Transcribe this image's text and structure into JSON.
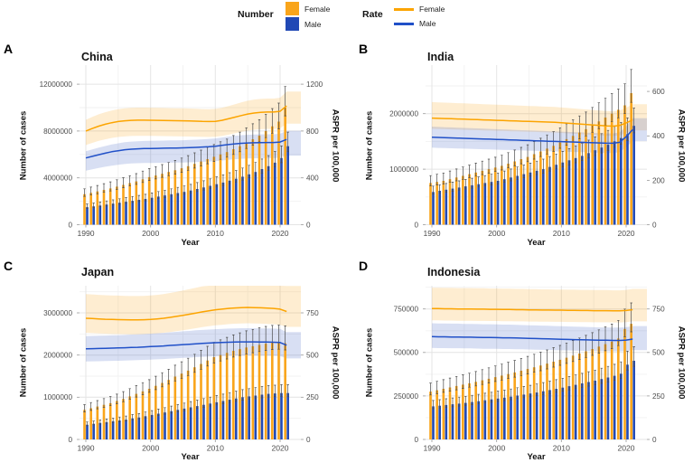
{
  "colors": {
    "female": "#F9A51B",
    "male": "#2149B5",
    "female_line": "#FCA400",
    "male_line": "#2050C8",
    "female_band": "rgba(249,164,26,0.20)",
    "male_band": "rgba(59,96,196,0.20)",
    "error_bar": "#4a4a4a",
    "grid_major": "#E4E4E4",
    "grid_minor": "#F2F2F2",
    "axis_text": "#4d4d4d",
    "tick_mark": "#9a9a9a"
  },
  "legend": {
    "position": "top",
    "number_label": "Number",
    "rate_label": "Rate",
    "number_items": [
      {
        "label": "Female",
        "color": "#F9A51B"
      },
      {
        "label": "Male",
        "color": "#2149B5"
      }
    ],
    "rate_items": [
      {
        "label": "Female",
        "color": "#FCA400"
      },
      {
        "label": "Male",
        "color": "#2050C8"
      }
    ]
  },
  "chart_data": [
    {
      "type": "bar+line",
      "letter": "A",
      "title": "China",
      "xlabel": "Year",
      "ylabel_left": "Number of cases",
      "ylabel_right": "ASPR per 100,000",
      "legend_position": "top",
      "grid": true,
      "years": [
        1990,
        1991,
        1992,
        1993,
        1994,
        1995,
        1996,
        1997,
        1998,
        1999,
        2000,
        2001,
        2002,
        2003,
        2004,
        2005,
        2006,
        2007,
        2008,
        2009,
        2010,
        2011,
        2012,
        2013,
        2014,
        2015,
        2016,
        2017,
        2018,
        2019,
        2020,
        2021
      ],
      "x_ticks": [
        1990,
        2000,
        2010,
        2020
      ],
      "left_ticks": [
        0,
        4000000,
        8000000,
        12000000
      ],
      "right_ticks": [
        0,
        400,
        800,
        1200
      ],
      "right_axis_transform": 10000,
      "bars": {
        "female": [
          2600000,
          2720000,
          2840000,
          2970000,
          3100000,
          3250000,
          3400000,
          3550000,
          3700000,
          3880000,
          4060000,
          4200000,
          4350000,
          4500000,
          4650000,
          4820000,
          5000000,
          5200000,
          5400000,
          5600000,
          5800000,
          6000000,
          6200000,
          6450000,
          6700000,
          7000000,
          7300000,
          7600000,
          8000000,
          8400000,
          8800000,
          10000000
        ],
        "male": [
          1500000,
          1570000,
          1640000,
          1720000,
          1800000,
          1880000,
          1960000,
          2040000,
          2120000,
          2200000,
          2300000,
          2400000,
          2500000,
          2600000,
          2700000,
          2800000,
          2920000,
          3050000,
          3180000,
          3320000,
          3460000,
          3600000,
          3760000,
          3920000,
          4100000,
          4300000,
          4500000,
          4750000,
          5000000,
          5300000,
          5700000,
          6700000
        ]
      },
      "rates": {
        "female": [
          800,
          822,
          842,
          858,
          871,
          881,
          887,
          891,
          893,
          893,
          892,
          891,
          890,
          889,
          888,
          887,
          886,
          884,
          882,
          881,
          883,
          891,
          904,
          918,
          932,
          945,
          954,
          959,
          962,
          962,
          968,
          1015
        ],
        "male": [
          570,
          584,
          598,
          611,
          623,
          632,
          640,
          645,
          648,
          650,
          651,
          652,
          653,
          654,
          655,
          656,
          658,
          660,
          663,
          666,
          670,
          677,
          684,
          690,
          695,
          698,
          700,
          701,
          702,
          702,
          706,
          728
        ]
      },
      "bands": {
        "female": {
          "lower": 0.85,
          "upper": 1.12
        },
        "male": {
          "lower": 0.81,
          "upper": 1.1
        }
      },
      "error_bars": {
        "lower": 0.93,
        "upper": 1.18
      }
    },
    {
      "type": "bar+line",
      "letter": "B",
      "title": "India",
      "xlabel": "Year",
      "ylabel_left": "Number of cases",
      "ylabel_right": "ASPR per 100,000",
      "legend_position": "top",
      "grid": true,
      "years": [
        1990,
        1991,
        1992,
        1993,
        1994,
        1995,
        1996,
        1997,
        1998,
        1999,
        2000,
        2001,
        2002,
        2003,
        2004,
        2005,
        2006,
        2007,
        2008,
        2009,
        2010,
        2011,
        2012,
        2013,
        2014,
        2015,
        2016,
        2017,
        2018,
        2019,
        2020,
        2021
      ],
      "x_ticks": [
        1990,
        2000,
        2010,
        2020
      ],
      "left_ticks": [
        0,
        1000000,
        2000000
      ],
      "right_ticks": [
        0,
        200,
        400,
        600
      ],
      "right_axis_transform": 4000,
      "bars": {
        "female": [
          750000,
          770000,
          790000,
          820000,
          850000,
          880000,
          910000,
          940000,
          970000,
          1000000,
          1030000,
          1060000,
          1100000,
          1140000,
          1180000,
          1220000,
          1270000,
          1320000,
          1370000,
          1420000,
          1480000,
          1540000,
          1600000,
          1660000,
          1720000,
          1790000,
          1860000,
          1930000,
          2000000,
          2070000,
          2150000,
          2370000
        ],
        "male": [
          590000,
          610000,
          630000,
          650000,
          670000,
          690000,
          710000,
          730000,
          750000,
          770000,
          790000,
          820000,
          850000,
          880000,
          910000,
          940000,
          970000,
          1000000,
          1040000,
          1080000,
          1120000,
          1160000,
          1200000,
          1240000,
          1290000,
          1340000,
          1390000,
          1440000,
          1500000,
          1560000,
          1630000,
          1780000
        ]
      },
      "rates": {
        "female": [
          480,
          479,
          478,
          477,
          476,
          475,
          474,
          473,
          472,
          471,
          470,
          469,
          468,
          467,
          466,
          465,
          464,
          463,
          462,
          461,
          459,
          457,
          455,
          453,
          451,
          449,
          447,
          445,
          444,
          447,
          458,
          472
        ],
        "male": [
          394,
          393,
          392,
          391,
          390,
          389,
          388,
          387,
          386,
          385,
          384,
          383,
          382,
          381,
          380,
          379,
          378,
          377,
          376,
          375,
          374,
          373,
          372,
          371,
          370,
          369,
          368,
          367,
          367,
          371,
          396,
          428
        ]
      },
      "bands": {
        "female": {
          "lower": 0.9,
          "upper": 1.15
        },
        "male": {
          "lower": 0.88,
          "upper": 1.12
        }
      },
      "error_bars": {
        "lower": 0.93,
        "upper": 1.18
      }
    },
    {
      "type": "bar+line",
      "letter": "C",
      "title": "Japan",
      "xlabel": "Year",
      "ylabel_left": "Number of cases",
      "ylabel_right": "ASPR per 100,000",
      "legend_position": "top",
      "grid": true,
      "years": [
        1990,
        1991,
        1992,
        1993,
        1994,
        1995,
        1996,
        1997,
        1998,
        1999,
        2000,
        2001,
        2002,
        2003,
        2004,
        2005,
        2006,
        2007,
        2008,
        2009,
        2010,
        2011,
        2012,
        2013,
        2014,
        2015,
        2016,
        2017,
        2018,
        2019,
        2020,
        2021
      ],
      "x_ticks": [
        1990,
        2000,
        2010,
        2020
      ],
      "left_ticks": [
        0,
        1000000,
        2000000,
        3000000
      ],
      "right_ticks": [
        0,
        250,
        500,
        750
      ],
      "right_axis_transform": 4000,
      "bars": {
        "female": [
          700000,
          740000,
          780000,
          820000,
          860000,
          910000,
          960000,
          1020000,
          1080000,
          1140000,
          1200000,
          1270000,
          1340000,
          1410000,
          1490000,
          1560000,
          1630000,
          1710000,
          1790000,
          1870000,
          1950000,
          2000000,
          2050000,
          2100000,
          2140000,
          2180000,
          2210000,
          2240000,
          2270000,
          2290000,
          2300000,
          2280000
        ],
        "male": [
          350000,
          370000,
          390000,
          410000,
          430000,
          450000,
          470000,
          500000,
          520000,
          550000,
          580000,
          610000,
          640000,
          670000,
          700000,
          730000,
          760000,
          790000,
          820000,
          850000,
          880000,
          910000,
          940000,
          970000,
          1000000,
          1020000,
          1040000,
          1060000,
          1080000,
          1090000,
          1100000,
          1100000
        ]
      },
      "rates": {
        "female": [
          718,
          716,
          714,
          712,
          711,
          710,
          709,
          708,
          708,
          709,
          711,
          714,
          718,
          723,
          729,
          735,
          742,
          749,
          756,
          762,
          768,
          772,
          776,
          779,
          781,
          782,
          781,
          780,
          778,
          776,
          772,
          758
        ],
        "male": [
          537,
          538,
          539,
          540,
          541,
          542,
          543,
          545,
          546,
          548,
          550,
          552,
          554,
          557,
          559,
          562,
          564,
          567,
          569,
          571,
          573,
          574,
          576,
          577,
          578,
          578,
          578,
          577,
          577,
          576,
          574,
          558
        ]
      },
      "bands": {
        "female": {
          "lower": 0.88,
          "upper": 1.2
        },
        "male": {
          "lower": 0.86,
          "upper": 1.14
        }
      },
      "error_bars": {
        "lower": 0.93,
        "upper": 1.18
      }
    },
    {
      "type": "bar+line",
      "letter": "D",
      "title": "Indonesia",
      "xlabel": "Year",
      "ylabel_left": "Number of cases",
      "ylabel_right": "ASPR per 100,000",
      "legend_position": "top",
      "grid": true,
      "years": [
        1990,
        1991,
        1992,
        1993,
        1994,
        1995,
        1996,
        1997,
        1998,
        1999,
        2000,
        2001,
        2002,
        2003,
        2004,
        2005,
        2006,
        2007,
        2008,
        2009,
        2010,
        2011,
        2012,
        2013,
        2014,
        2015,
        2016,
        2017,
        2018,
        2019,
        2020,
        2021
      ],
      "x_ticks": [
        1990,
        2000,
        2010,
        2020
      ],
      "left_ticks": [
        0,
        250000,
        500000,
        750000
      ],
      "right_ticks": [
        0,
        250,
        500,
        750
      ],
      "right_axis_transform": 1000,
      "bars": {
        "female": [
          275000,
          283000,
          291000,
          299000,
          307000,
          315000,
          323000,
          331000,
          340000,
          349000,
          358000,
          367000,
          376000,
          385000,
          395000,
          405000,
          415000,
          425000,
          436000,
          447000,
          458000,
          470000,
          482000,
          494000,
          507000,
          520000,
          534000,
          548000,
          562000,
          580000,
          635000,
          665000
        ],
        "male": [
          190000,
          194000,
          198000,
          202000,
          206000,
          210000,
          215000,
          220000,
          225000,
          230000,
          235000,
          240000,
          246000,
          252000,
          258000,
          264000,
          270000,
          277000,
          284000,
          291000,
          298000,
          306000,
          314000,
          322000,
          330000,
          338000,
          347000,
          356000,
          366000,
          378000,
          430000,
          452000
        ]
      },
      "rates": {
        "female": [
          752,
          752,
          751,
          751,
          750,
          750,
          750,
          749,
          749,
          748,
          748,
          747,
          747,
          746,
          746,
          745,
          745,
          744,
          744,
          743,
          743,
          742,
          742,
          741,
          741,
          740,
          740,
          740,
          739,
          739,
          741,
          746
        ],
        "male": [
          591,
          590,
          590,
          589,
          589,
          588,
          588,
          587,
          586,
          586,
          585,
          584,
          584,
          583,
          582,
          581,
          580,
          579,
          578,
          577,
          576,
          575,
          574,
          573,
          572,
          571,
          570,
          570,
          569,
          569,
          571,
          577
        ]
      },
      "bands": {
        "female": {
          "lower": 0.91,
          "upper": 1.16
        },
        "male": {
          "lower": 0.89,
          "upper": 1.13
        }
      },
      "error_bars": {
        "lower": 0.93,
        "upper": 1.18
      }
    }
  ]
}
